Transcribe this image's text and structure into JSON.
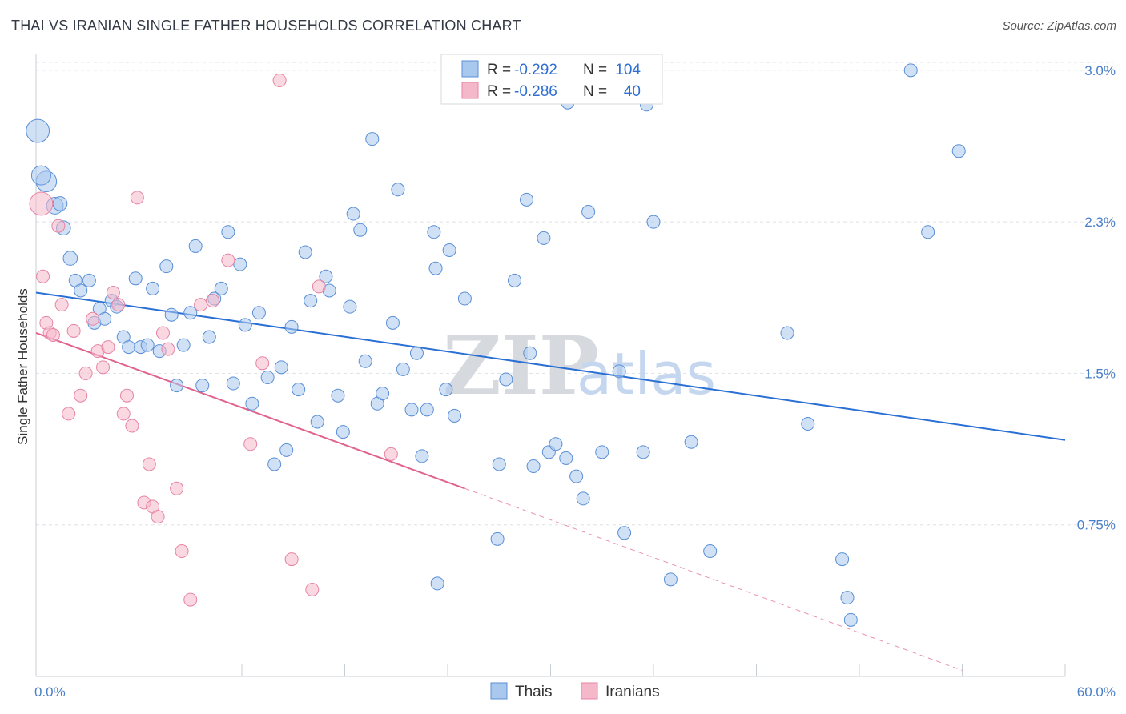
{
  "title": "THAI VS IRANIAN SINGLE FATHER HOUSEHOLDS CORRELATION CHART",
  "source": "Source: ZipAtlas.com",
  "watermark": {
    "zip": "ZIP",
    "atlas": "atlas"
  },
  "colors": {
    "thai_fill": "#a9c8ee",
    "thai_stroke": "#5a8fd6",
    "thai_line": "#2a6fd4",
    "iran_fill": "#f5b8cb",
    "iran_stroke": "#e684a5",
    "iran_line": "#e0628e",
    "grid": "#dde1e6",
    "axis_text": "#4a7fc9"
  },
  "legend": {
    "rows": [
      {
        "r_label": "R =",
        "r_value": "-0.292",
        "n_label": "N =",
        "n_value": "104"
      },
      {
        "r_label": "R =",
        "r_value": "-0.286",
        "n_label": "N =",
        "n_value": "40"
      }
    ]
  },
  "chart_data": {
    "type": "scatter",
    "title": "THAI VS IRANIAN SINGLE FATHER HOUSEHOLDS CORRELATION CHART",
    "xlabel": "",
    "ylabel": "Single Father Households",
    "xlim": [
      0,
      60
    ],
    "ylim": [
      0,
      3.15
    ],
    "x_tick_labels": [
      "0.0%",
      "60.0%"
    ],
    "y_ticks": [
      0.75,
      1.5,
      2.25,
      3.0
    ],
    "y_tick_labels": [
      "0.75%",
      "1.5%",
      "2.3%",
      "3.0%"
    ],
    "grid": "horizontal dashed",
    "legend_position": "top-center",
    "series": [
      {
        "name": "Thais",
        "trend": {
          "x": [
            0,
            60
          ],
          "y": [
            1.9,
            1.17
          ]
        },
        "points": [
          [
            0.1,
            2.7,
            1.8
          ],
          [
            0.6,
            2.45,
            1.6
          ],
          [
            1.1,
            2.33,
            1.3
          ],
          [
            1.4,
            2.34,
            1.1
          ],
          [
            1.6,
            2.22,
            1.1
          ],
          [
            2.0,
            2.07,
            1.1
          ],
          [
            2.3,
            1.96,
            1.0
          ],
          [
            2.6,
            1.91,
            1.0
          ],
          [
            3.1,
            1.96,
            1.0
          ],
          [
            3.4,
            1.75,
            1.0
          ],
          [
            3.7,
            1.82,
            1.0
          ],
          [
            4.0,
            1.77,
            1.0
          ],
          [
            4.4,
            1.86,
            1.0
          ],
          [
            4.7,
            1.83,
            1.0
          ],
          [
            5.1,
            1.68,
            1.0
          ],
          [
            5.4,
            1.63,
            1.0
          ],
          [
            5.8,
            1.97,
            1.0
          ],
          [
            6.1,
            1.63,
            1.0
          ],
          [
            6.5,
            1.64,
            1.0
          ],
          [
            6.8,
            1.92,
            1.0
          ],
          [
            7.2,
            1.61,
            1.0
          ],
          [
            7.6,
            2.03,
            1.0
          ],
          [
            7.9,
            1.79,
            1.0
          ],
          [
            8.2,
            1.44,
            1.0
          ],
          [
            8.6,
            1.64,
            1.0
          ],
          [
            9.0,
            1.8,
            1.0
          ],
          [
            9.3,
            2.13,
            1.0
          ],
          [
            9.7,
            1.44,
            1.0
          ],
          [
            10.1,
            1.68,
            1.0
          ],
          [
            10.4,
            1.87,
            1.0
          ],
          [
            10.8,
            1.92,
            1.0
          ],
          [
            11.2,
            2.2,
            1.0
          ],
          [
            11.5,
            1.45,
            1.0
          ],
          [
            11.9,
            2.04,
            1.0
          ],
          [
            12.2,
            1.74,
            1.0
          ],
          [
            12.6,
            1.35,
            1.0
          ],
          [
            13.0,
            1.8,
            1.0
          ],
          [
            13.5,
            1.48,
            1.0
          ],
          [
            13.9,
            1.05,
            1.0
          ],
          [
            14.3,
            1.53,
            1.0
          ],
          [
            14.6,
            1.12,
            1.0
          ],
          [
            14.9,
            1.73,
            1.0
          ],
          [
            15.3,
            1.42,
            1.0
          ],
          [
            15.7,
            2.1,
            1.0
          ],
          [
            16.0,
            1.86,
            1.0
          ],
          [
            16.4,
            1.26,
            1.0
          ],
          [
            16.9,
            1.98,
            1.0
          ],
          [
            17.1,
            1.91,
            1.0
          ],
          [
            17.6,
            1.39,
            1.0
          ],
          [
            17.9,
            1.21,
            1.0
          ],
          [
            18.3,
            1.83,
            1.0
          ],
          [
            18.5,
            2.29,
            1.0
          ],
          [
            18.9,
            2.21,
            1.0
          ],
          [
            19.2,
            1.56,
            1.0
          ],
          [
            19.6,
            2.66,
            1.0
          ],
          [
            19.9,
            1.35,
            1.0
          ],
          [
            20.2,
            1.4,
            1.0
          ],
          [
            20.8,
            1.75,
            1.0
          ],
          [
            21.1,
            2.41,
            1.0
          ],
          [
            21.4,
            1.52,
            1.0
          ],
          [
            21.9,
            1.32,
            1.0
          ],
          [
            22.2,
            1.6,
            1.0
          ],
          [
            22.5,
            1.09,
            1.0
          ],
          [
            22.8,
            1.32,
            1.0
          ],
          [
            23.2,
            2.2,
            1.0
          ],
          [
            23.3,
            2.02,
            1.0
          ],
          [
            23.4,
            0.46,
            1.0
          ],
          [
            23.9,
            1.42,
            1.0
          ],
          [
            24.1,
            2.11,
            1.0
          ],
          [
            24.4,
            1.29,
            1.0
          ],
          [
            25.0,
            1.87,
            1.0
          ],
          [
            26.9,
            0.68,
            1.0
          ],
          [
            27.0,
            1.05,
            1.0
          ],
          [
            27.4,
            1.47,
            1.0
          ],
          [
            27.9,
            1.96,
            1.0
          ],
          [
            28.6,
            2.36,
            1.0
          ],
          [
            28.8,
            1.6,
            1.0
          ],
          [
            29.0,
            1.04,
            1.0
          ],
          [
            29.6,
            2.17,
            1.0
          ],
          [
            29.9,
            1.11,
            1.0
          ],
          [
            30.3,
            1.15,
            1.0
          ],
          [
            30.9,
            1.08,
            1.0
          ],
          [
            31.0,
            2.84,
            1.0
          ],
          [
            31.5,
            0.99,
            1.0
          ],
          [
            31.9,
            0.88,
            1.0
          ],
          [
            32.2,
            2.3,
            1.0
          ],
          [
            33.0,
            1.11,
            1.0
          ],
          [
            34.0,
            1.51,
            1.0
          ],
          [
            34.3,
            0.71,
            1.0
          ],
          [
            35.4,
            1.11,
            1.0
          ],
          [
            35.6,
            2.83,
            1.0
          ],
          [
            36.0,
            2.25,
            1.0
          ],
          [
            37.0,
            0.48,
            1.0
          ],
          [
            38.2,
            1.16,
            1.0
          ],
          [
            39.3,
            0.62,
            1.0
          ],
          [
            43.8,
            1.7,
            1.0
          ],
          [
            45.0,
            1.25,
            1.0
          ],
          [
            47.0,
            0.58,
            1.0
          ],
          [
            47.3,
            0.39,
            1.0
          ],
          [
            47.5,
            0.28,
            1.0
          ],
          [
            51.0,
            3.0,
            1.0
          ],
          [
            52.0,
            2.2,
            1.0
          ],
          [
            53.8,
            2.6,
            1.0
          ],
          [
            0.3,
            2.48,
            1.5
          ]
        ]
      },
      {
        "name": "Iranians",
        "trend": {
          "x": [
            0,
            25
          ],
          "y": [
            1.7,
            0.93
          ]
        },
        "trend_dashed": {
          "x": [
            25,
            54
          ],
          "y": [
            0.93,
            0.03
          ]
        },
        "points": [
          [
            0.3,
            2.34,
            1.8
          ],
          [
            0.4,
            1.98,
            1.0
          ],
          [
            0.6,
            1.75,
            1.0
          ],
          [
            0.8,
            1.7,
            1.0
          ],
          [
            1.0,
            1.69,
            1.0
          ],
          [
            1.3,
            2.23,
            1.0
          ],
          [
            1.5,
            1.84,
            1.0
          ],
          [
            1.9,
            1.3,
            1.0
          ],
          [
            2.2,
            1.71,
            1.0
          ],
          [
            2.6,
            1.39,
            1.0
          ],
          [
            2.9,
            1.5,
            1.0
          ],
          [
            3.3,
            1.77,
            1.0
          ],
          [
            3.6,
            1.61,
            1.0
          ],
          [
            3.9,
            1.53,
            1.0
          ],
          [
            4.2,
            1.63,
            1.0
          ],
          [
            4.5,
            1.9,
            1.0
          ],
          [
            4.8,
            1.84,
            1.0
          ],
          [
            5.1,
            1.3,
            1.0
          ],
          [
            5.3,
            1.39,
            1.0
          ],
          [
            5.6,
            1.24,
            1.0
          ],
          [
            5.9,
            2.37,
            1.0
          ],
          [
            6.3,
            0.86,
            1.0
          ],
          [
            6.6,
            1.05,
            1.0
          ],
          [
            6.8,
            0.84,
            1.0
          ],
          [
            7.1,
            0.79,
            1.0
          ],
          [
            7.4,
            1.7,
            1.0
          ],
          [
            7.7,
            1.62,
            1.0
          ],
          [
            8.2,
            0.93,
            1.0
          ],
          [
            8.5,
            0.62,
            1.0
          ],
          [
            9.0,
            0.38,
            1.0
          ],
          [
            9.6,
            1.84,
            1.0
          ],
          [
            10.3,
            1.86,
            1.0
          ],
          [
            11.2,
            2.06,
            1.0
          ],
          [
            12.5,
            1.15,
            1.0
          ],
          [
            13.2,
            1.55,
            1.0
          ],
          [
            14.2,
            2.95,
            1.0
          ],
          [
            14.9,
            0.58,
            1.0
          ],
          [
            16.1,
            0.43,
            1.0
          ],
          [
            16.5,
            1.93,
            1.0
          ],
          [
            20.7,
            1.1,
            1.0
          ]
        ]
      }
    ]
  },
  "bottom_legend": {
    "thai": "Thais",
    "iran": "Iranians"
  }
}
